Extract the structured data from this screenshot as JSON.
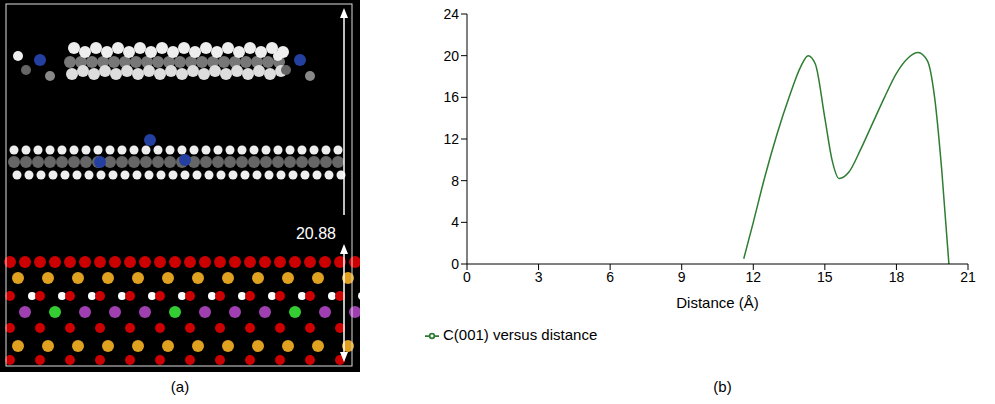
{
  "structure": {
    "panel_label": "(a)",
    "annotation": "20.88"
  },
  "chart_data": {
    "type": "line",
    "panel_label": "(b)",
    "x_label": "Distance (Å)",
    "xlim": [
      0,
      21
    ],
    "xticks": [
      0,
      3,
      6,
      9,
      12,
      15,
      18,
      21
    ],
    "ylim": [
      0,
      24
    ],
    "yticks": [
      0,
      4,
      8,
      12,
      16,
      20,
      24
    ],
    "grid": false,
    "legend": "bottom-left",
    "series": [
      {
        "name": "C(001) versus distance",
        "color": "#2e7d32",
        "x": [
          11.6,
          12.0,
          12.5,
          13.0,
          13.5,
          14.0,
          14.3,
          14.6,
          15.0,
          15.3,
          15.6,
          16.0,
          16.5,
          17.0,
          17.5,
          18.0,
          18.5,
          18.9,
          19.3,
          19.6,
          19.9,
          20.2
        ],
        "values": [
          0.5,
          4,
          8.5,
          12.5,
          16,
          19,
          20,
          19.2,
          14,
          10,
          8.2,
          8.8,
          11,
          13.5,
          16,
          18.3,
          19.8,
          20.3,
          19.5,
          16,
          9,
          0
        ]
      }
    ]
  }
}
